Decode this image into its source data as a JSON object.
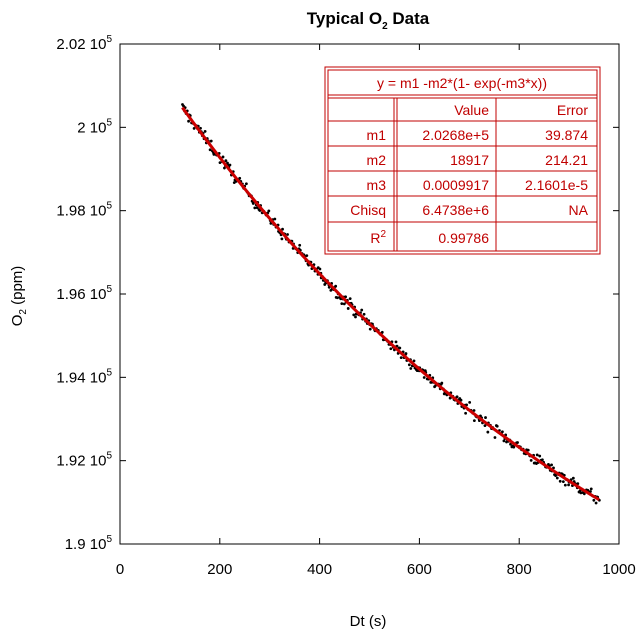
{
  "chart_data": {
    "type": "scatter",
    "title": "Typical O2 Data",
    "title_main": "Typical O",
    "title_sub": "2",
    "title_end": " Data",
    "xlabel": "Dt (s)",
    "ylabel": "O2 (ppm)",
    "ylabel_main": "O",
    "ylabel_sub": "2",
    "ylabel_end": " (ppm)",
    "xlim": [
      0,
      1000
    ],
    "ylim": [
      190000,
      202000
    ],
    "x_ticks": [
      0,
      200,
      400,
      600,
      800,
      1000
    ],
    "x_tick_labels": [
      "0",
      "200",
      "400",
      "600",
      "800",
      "1000"
    ],
    "y_ticks": [
      190000,
      192000,
      194000,
      196000,
      198000,
      200000,
      202000
    ],
    "y_tick_labels": [
      {
        "mantissa": "1.9",
        "exp": "5"
      },
      {
        "mantissa": "1.92",
        "exp": "5"
      },
      {
        "mantissa": "1.94",
        "exp": "5"
      },
      {
        "mantissa": "1.96",
        "exp": "5"
      },
      {
        "mantissa": "1.98",
        "exp": "5"
      },
      {
        "mantissa": "2",
        "exp": "5"
      },
      {
        "mantissa": "2.02",
        "exp": "5"
      }
    ],
    "grid": false,
    "series": [
      {
        "kind": "scatter",
        "color": "#000000",
        "x_range": [
          125,
          960
        ],
        "point_count": 420
      },
      {
        "kind": "fit",
        "color": "#cc0000",
        "x_range": [
          125,
          960
        ],
        "model": "y = m1 - m2*(1 - exp(-m3*x))",
        "params": {
          "m1": 202680,
          "m2": 18917,
          "m3": 0.0009917
        }
      }
    ]
  },
  "fit_table": {
    "equation": "y = m1 -m2*(1- exp(-m3*x))",
    "header": {
      "name": "",
      "value": "Value",
      "error": "Error"
    },
    "rows": [
      {
        "name": "m1",
        "value": "2.0268e+5",
        "error": "39.874"
      },
      {
        "name": "m2",
        "value": "18917",
        "error": "214.21"
      },
      {
        "name": "m3",
        "value": "0.0009917",
        "error": "2.1601e-5"
      },
      {
        "name": "Chisq",
        "value": "6.4738e+6",
        "error": "NA"
      },
      {
        "name": "R",
        "name_sup": "2",
        "value": "0.99786",
        "error": ""
      }
    ],
    "color": "#c00000"
  }
}
